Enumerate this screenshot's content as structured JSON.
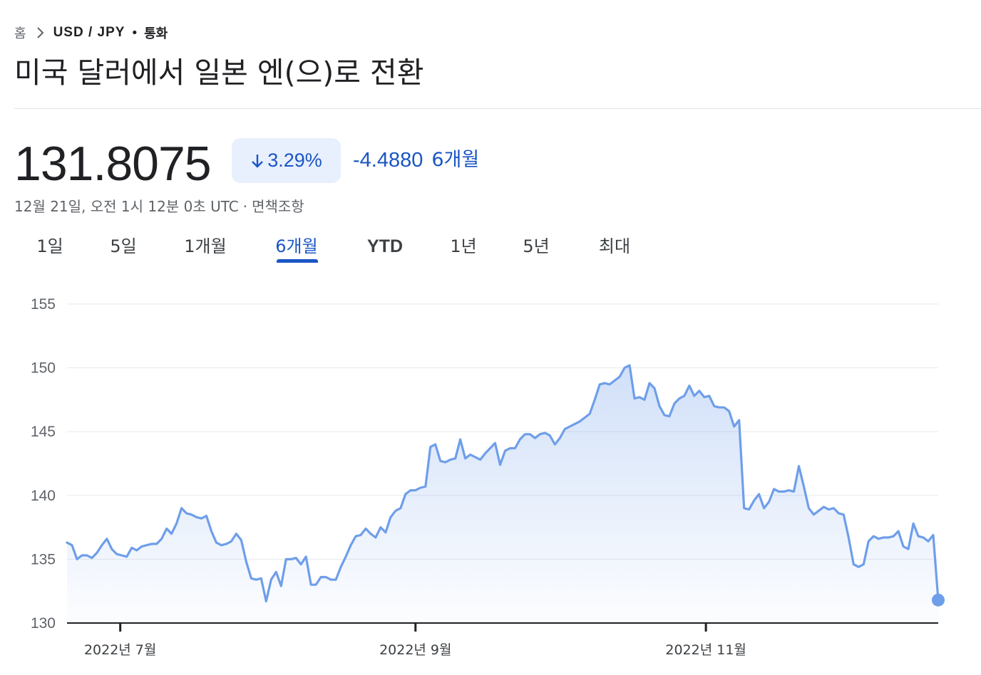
{
  "breadcrumb": {
    "home": "홈",
    "pair": "USD / JPY",
    "separator": "•",
    "type": "통화"
  },
  "title": "미국 달러에서 일본 엔(으)로 전환",
  "quote": {
    "price": "131.8075",
    "change_percent": "3.29%",
    "change_direction": "down",
    "change_abs": "-4.4880",
    "period": "6개월",
    "timestamp": "12월 21일, 오전 1시 12분 0초 UTC",
    "meta_separator": "·",
    "disclaimer": "면책조항"
  },
  "tabs": [
    {
      "label": "1일",
      "active": false
    },
    {
      "label": "5일",
      "active": false
    },
    {
      "label": "1개월",
      "active": false
    },
    {
      "label": "6개월",
      "active": true
    },
    {
      "label": "YTD",
      "active": false
    },
    {
      "label": "1년",
      "active": false
    },
    {
      "label": "5년",
      "active": false
    },
    {
      "label": "최대",
      "active": false
    }
  ],
  "colors": {
    "accent": "#1a56c4",
    "line": "#6f9eea",
    "chip_bg": "#e8f0fe"
  },
  "chart_data": {
    "type": "area",
    "ylim": [
      130,
      155
    ],
    "yticks": [
      "155",
      "150",
      "145",
      "140",
      "135",
      "130"
    ],
    "x_label_ticks": [
      {
        "label": "2022년 7월",
        "day": 11
      },
      {
        "label": "2022년 9월",
        "day": 72
      },
      {
        "label": "2022년 11월",
        "day": 132
      }
    ],
    "x_range_days": [
      0,
      180
    ],
    "values": [
      136.3,
      136.1,
      135.0,
      135.3,
      135.3,
      135.1,
      135.5,
      136.1,
      136.6,
      135.8,
      135.4,
      135.3,
      135.2,
      135.9,
      135.7,
      136.0,
      136.1,
      136.2,
      136.2,
      136.6,
      137.4,
      137.0,
      137.8,
      139.0,
      138.6,
      138.5,
      138.3,
      138.2,
      138.4,
      137.2,
      136.3,
      136.1,
      136.2,
      136.4,
      137.0,
      136.5,
      134.8,
      133.5,
      133.4,
      133.5,
      131.7,
      133.4,
      134.0,
      132.9,
      135.0,
      135.0,
      135.1,
      134.6,
      135.2,
      133.0,
      133.0,
      133.6,
      133.6,
      133.4,
      133.4,
      134.4,
      135.2,
      136.1,
      136.8,
      136.9,
      137.4,
      137.0,
      136.7,
      137.5,
      137.1,
      138.3,
      138.8,
      139.0,
      140.1,
      140.4,
      140.4,
      140.6,
      140.7,
      143.8,
      144.0,
      142.7,
      142.6,
      142.8,
      142.9,
      144.4,
      142.9,
      143.2,
      143.0,
      142.8,
      143.3,
      143.7,
      144.1,
      142.4,
      143.5,
      143.7,
      143.7,
      144.4,
      144.8,
      144.8,
      144.5,
      144.8,
      144.9,
      144.7,
      144.0,
      144.5,
      145.2,
      145.4,
      145.6,
      145.8,
      146.1,
      146.4,
      147.5,
      148.7,
      148.8,
      148.7,
      149.0,
      149.3,
      150.0,
      150.2,
      147.6,
      147.7,
      147.5,
      148.8,
      148.4,
      147.0,
      146.3,
      146.2,
      147.2,
      147.6,
      147.8,
      148.6,
      147.8,
      148.2,
      147.7,
      147.8,
      147.0,
      146.9,
      146.9,
      146.6,
      145.4,
      145.9,
      139.0,
      138.9,
      139.6,
      140.1,
      139.0,
      139.5,
      140.5,
      140.3,
      140.3,
      140.4,
      140.3,
      142.3,
      140.7,
      139.0,
      138.5,
      138.8,
      139.1,
      138.9,
      139.0,
      138.6,
      138.5,
      136.7,
      134.6,
      134.4,
      134.6,
      136.4,
      136.8,
      136.6,
      136.7,
      136.7,
      136.8,
      137.2,
      136.0,
      135.8,
      137.8,
      136.8,
      136.7,
      136.4,
      136.9,
      131.8
    ]
  }
}
